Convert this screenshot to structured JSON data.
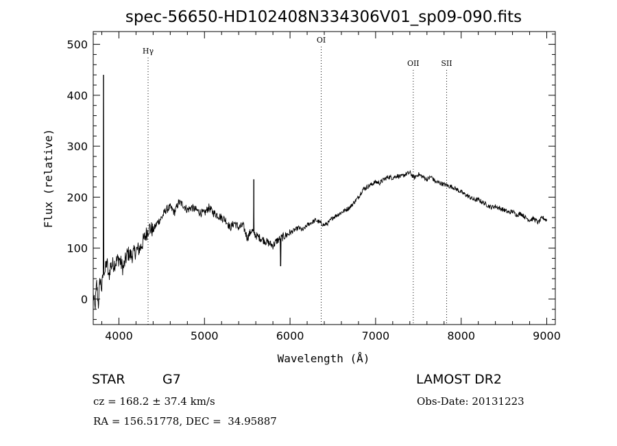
{
  "chart_data": {
    "type": "line",
    "title": "spec-56650-HD102408N334306V01_sp09-090.fits",
    "xlabel": "Wavelength (Å)",
    "ylabel": "Flux (relative)",
    "xlim": [
      3700,
      9100
    ],
    "ylim": [
      -50,
      525
    ],
    "x_ticks": [
      4000,
      5000,
      6000,
      7000,
      8000,
      9000
    ],
    "y_ticks": [
      0,
      100,
      200,
      300,
      400,
      500
    ],
    "lines": [
      {
        "label": "Hγ",
        "x": 4341
      },
      {
        "label": "OI",
        "x": 6364
      },
      {
        "label": "OII",
        "x": 7440
      },
      {
        "label": "SII",
        "x": 7830
      }
    ],
    "series": [
      {
        "x": [
          3700,
          3720,
          3740,
          3760,
          3780,
          3800,
          3820,
          3840,
          3860,
          3880,
          3900,
          3950,
          4000,
          4050,
          4100,
          4150,
          4200,
          4250,
          4300,
          4350,
          4400,
          4450,
          4500,
          4550,
          4600,
          4650,
          4700,
          4750,
          4800,
          4850,
          4900,
          4950,
          5000,
          5050,
          5100,
          5150,
          5200,
          5250,
          5300,
          5350,
          5400,
          5450,
          5500,
          5550,
          5600,
          5650,
          5700,
          5750,
          5800,
          5850,
          5900,
          5950,
          6000,
          6050,
          6100,
          6150,
          6200,
          6250,
          6300,
          6350,
          6400,
          6450,
          6500,
          6550,
          6600,
          6650,
          6700,
          6750,
          6800,
          6850,
          6900,
          6950,
          7000,
          7050,
          7100,
          7150,
          7200,
          7250,
          7300,
          7350,
          7400,
          7450,
          7500,
          7550,
          7600,
          7650,
          7700,
          7750,
          7800,
          7850,
          7900,
          7950,
          8000,
          8050,
          8100,
          8150,
          8200,
          8250,
          8300,
          8350,
          8400,
          8450,
          8500,
          8550,
          8600,
          8650,
          8700,
          8750,
          8800,
          8850,
          8900,
          8950,
          9000
        ],
        "y": [
          10,
          -20,
          30,
          -10,
          40,
          20,
          60,
          55,
          75,
          40,
          65,
          70,
          80,
          60,
          90,
          85,
          95,
          100,
          120,
          140,
          135,
          150,
          160,
          175,
          180,
          170,
          190,
          185,
          175,
          180,
          175,
          170,
          168,
          180,
          170,
          165,
          160,
          155,
          140,
          150,
          140,
          145,
          120,
          135,
          125,
          120,
          115,
          110,
          105,
          115,
          120,
          125,
          130,
          135,
          140,
          135,
          145,
          150,
          155,
          150,
          145,
          150,
          160,
          165,
          170,
          175,
          180,
          190,
          200,
          215,
          220,
          225,
          230,
          228,
          235,
          240,
          238,
          242,
          240,
          245,
          248,
          238,
          245,
          240,
          235,
          240,
          230,
          228,
          225,
          222,
          220,
          215,
          210,
          205,
          200,
          195,
          195,
          190,
          185,
          180,
          182,
          178,
          175,
          170,
          172,
          165,
          168,
          160,
          155,
          158,
          150,
          160,
          155
        ]
      }
    ],
    "spikes": [
      {
        "x": 3820,
        "y": 440
      },
      {
        "x": 5577,
        "y": 235
      },
      {
        "x": 5890,
        "y": 65
      }
    ],
    "grid": false
  },
  "info": {
    "object_class": "STAR",
    "subclass": "G7",
    "survey": "LAMOST DR2",
    "redshift": "cz = 168.2 ± 37.4 km/s",
    "obs_date": "Obs-Date: 20131223",
    "coords": "RA = 156.51778, DEC =  34.95887"
  }
}
